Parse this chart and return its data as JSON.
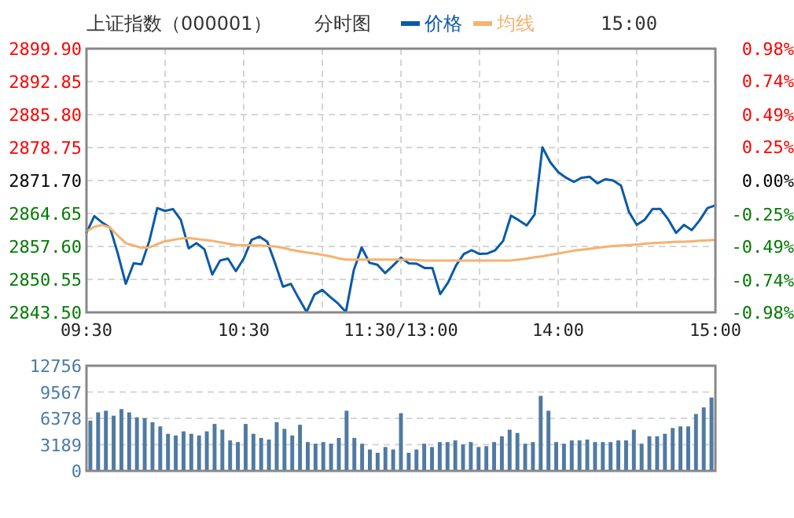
{
  "chart_data": [
    {
      "type": "line",
      "title": "上证指数（000001）",
      "subtitle": "分时图",
      "annotations": [
        "15:00"
      ],
      "legend": "top",
      "grid": true,
      "categories": [
        "09:30",
        null,
        null,
        null,
        null,
        null,
        null,
        null,
        null,
        null,
        null,
        null,
        null,
        null,
        null,
        null,
        null,
        null,
        null,
        null,
        "10:30",
        null,
        null,
        null,
        null,
        null,
        null,
        null,
        null,
        null,
        null,
        null,
        null,
        null,
        null,
        null,
        null,
        null,
        null,
        null,
        "11:30/13:00",
        null,
        null,
        null,
        null,
        null,
        null,
        null,
        null,
        null,
        null,
        null,
        null,
        null,
        null,
        null,
        null,
        null,
        null,
        null,
        "14:00",
        null,
        null,
        null,
        null,
        null,
        null,
        null,
        null,
        null,
        null,
        null,
        null,
        null,
        null,
        null,
        null,
        null,
        null,
        null,
        "15:00"
      ],
      "ylim": [
        2843.5,
        2899.9
      ],
      "yticks": [
        {
          "value": 2843.5,
          "label": "2843.50"
        },
        {
          "value": 2850.55,
          "label": "2850.55"
        },
        {
          "value": 2857.6,
          "label": "2857.60"
        },
        {
          "value": 2864.65,
          "label": "2864.65"
        },
        {
          "value": 2871.7,
          "label": "2871.70"
        },
        {
          "value": 2878.75,
          "label": "2878.75"
        },
        {
          "value": 2885.8,
          "label": "2885.80"
        },
        {
          "value": 2892.85,
          "label": "2892.85"
        },
        {
          "value": 2899.9,
          "label": "2899.90"
        }
      ],
      "y2lim": [
        -0.98,
        0.98
      ],
      "y2ticks": [
        {
          "value": -0.98,
          "label": "-0.98%"
        },
        {
          "value": -0.74,
          "label": "-0.74%"
        },
        {
          "value": -0.49,
          "label": "-0.49%"
        },
        {
          "value": -0.25,
          "label": "-0.25%"
        },
        {
          "value": 0,
          "label": "0.00%"
        },
        {
          "value": 0.25,
          "label": "0.25%"
        },
        {
          "value": 0.49,
          "label": "0.49%"
        },
        {
          "value": 0.74,
          "label": "0.74%"
        },
        {
          "value": 0.98,
          "label": "0.98%"
        }
      ],
      "series": [
        {
          "name": "价格",
          "color": "#0a5aa8",
          "values": [
            2860.5,
            2864.1,
            2862.7,
            2861.6,
            2856.0,
            2849.6,
            2854.0,
            2853.8,
            2858.8,
            2865.8,
            2865.2,
            2865.6,
            2863.3,
            2857.2,
            2858.3,
            2857.0,
            2851.6,
            2854.6,
            2855.0,
            2852.3,
            2855.0,
            2859.0,
            2859.7,
            2858.6,
            2854.0,
            2849.0,
            2849.6,
            2846.5,
            2843.6,
            2847.3,
            2848.3,
            2846.8,
            2845.4,
            2843.6,
            2852.5,
            2857.4,
            2854.1,
            2853.7,
            2851.9,
            2853.5,
            2855.2,
            2854.0,
            2853.9,
            2853.0,
            2853.0,
            2847.4,
            2849.9,
            2853.5,
            2856.0,
            2856.8,
            2856.0,
            2856.1,
            2856.8,
            2858.8,
            2864.2,
            2863.2,
            2862.1,
            2864.4,
            2878.8,
            2875.6,
            2873.5,
            2872.3,
            2871.4,
            2872.3,
            2872.5,
            2871.1,
            2872.0,
            2871.7,
            2870.6,
            2865.0,
            2862.2,
            2863.3,
            2865.6,
            2865.6,
            2863.4,
            2860.5,
            2862.2,
            2861.1,
            2863.2,
            2865.8,
            2866.4
          ]
        },
        {
          "name": "均线",
          "color": "#f5b26e",
          "values": [
            2860.8,
            2861.8,
            2862.2,
            2861.6,
            2859.9,
            2858.3,
            2857.8,
            2857.3,
            2857.4,
            2858.1,
            2858.7,
            2859.0,
            2859.3,
            2859.4,
            2859.2,
            2859.0,
            2858.8,
            2858.5,
            2858.2,
            2857.9,
            2857.9,
            2857.8,
            2857.8,
            2857.7,
            2857.6,
            2857.3,
            2856.9,
            2856.6,
            2856.3,
            2856.1,
            2855.8,
            2855.5,
            2855.1,
            2854.8,
            2854.8,
            2854.8,
            2854.8,
            2854.8,
            2854.8,
            2854.8,
            2854.8,
            2854.8,
            2854.7,
            2854.6,
            2854.6,
            2854.6,
            2854.6,
            2854.6,
            2854.6,
            2854.6,
            2854.6,
            2854.6,
            2854.6,
            2854.6,
            2854.6,
            2854.8,
            2855.0,
            2855.3,
            2855.5,
            2855.8,
            2856.1,
            2856.4,
            2856.7,
            2856.9,
            2857.1,
            2857.3,
            2857.5,
            2857.7,
            2857.8,
            2857.9,
            2858.0,
            2858.2,
            2858.3,
            2858.4,
            2858.5,
            2858.6,
            2858.6,
            2858.7,
            2858.8,
            2858.9,
            2859.0
          ]
        }
      ]
    },
    {
      "type": "bar",
      "grid": "y",
      "tick_labels": "y",
      "categories": [
        null,
        null,
        null,
        null,
        null,
        null,
        null,
        null,
        null,
        null,
        null,
        null,
        null,
        null,
        null,
        null,
        null,
        null,
        null,
        null,
        null,
        null,
        null,
        null,
        null,
        null,
        null,
        null,
        null,
        null,
        null,
        null,
        null,
        null,
        null,
        null,
        null,
        null,
        null,
        null,
        null,
        null,
        null,
        null,
        null,
        null,
        null,
        null,
        null,
        null,
        null,
        null,
        null,
        null,
        null,
        null,
        null,
        null,
        null,
        null,
        null,
        null,
        null,
        null,
        null,
        null,
        null,
        null,
        null,
        null,
        null,
        null,
        null,
        null,
        null,
        null,
        null,
        null,
        null,
        null,
        null
      ],
      "ylim": [
        0,
        12756
      ],
      "yticks": [
        0,
        3189,
        6378,
        9567,
        12756
      ],
      "series": [
        {
          "color": "#4f7aa3",
          "values": [
            6100,
            7100,
            7300,
            6700,
            7500,
            7100,
            6500,
            6400,
            5900,
            5400,
            4500,
            4300,
            4800,
            4500,
            4300,
            4800,
            5700,
            5000,
            3700,
            3500,
            5700,
            4500,
            4000,
            3800,
            5900,
            5100,
            4300,
            5600,
            3500,
            3300,
            3500,
            3300,
            4000,
            7300,
            4000,
            3300,
            2600,
            2200,
            2900,
            2600,
            7000,
            2200,
            2600,
            3300,
            2900,
            3500,
            3500,
            3700,
            3200,
            3500,
            2900,
            3000,
            3500,
            4200,
            5000,
            4600,
            3300,
            3500,
            9100,
            7300,
            3500,
            3300,
            3700,
            3700,
            3800,
            3500,
            3500,
            3500,
            3700,
            3700,
            5000,
            3300,
            4200,
            4200,
            4500,
            5200,
            5400,
            5400,
            6900,
            7700,
            8900
          ]
        }
      ]
    }
  ]
}
